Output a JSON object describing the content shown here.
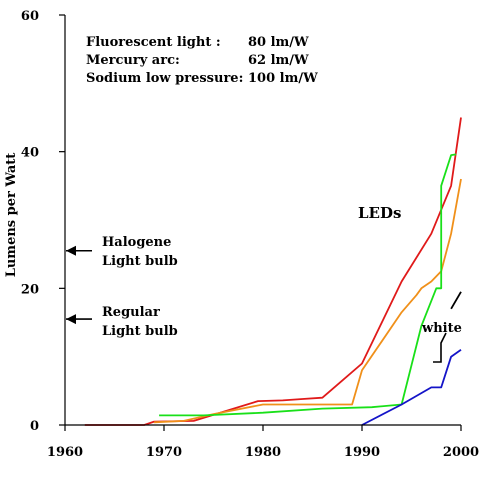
{
  "chart_data": {
    "type": "line",
    "title": "",
    "xlabel": "",
    "ylabel": "Lumens per Watt",
    "xlim": [
      1960,
      2000
    ],
    "ylim": [
      0,
      60
    ],
    "xticks": [
      1960,
      1970,
      1980,
      1990,
      2000
    ],
    "yticks": [
      0,
      20,
      40,
      60
    ],
    "grid": false,
    "colors": {
      "red": "#e01a1a",
      "orange": "#f0901a",
      "green": "#19e019",
      "blue": "#1414c8",
      "black": "#000000"
    },
    "series": [
      {
        "color": "red",
        "points": [
          [
            1962,
            0
          ],
          [
            1968,
            0
          ],
          [
            1969,
            0.5
          ],
          [
            1973,
            0.6
          ],
          [
            1979.5,
            3.5
          ],
          [
            1982,
            3.6
          ],
          [
            1984,
            3.8
          ],
          [
            1986,
            4
          ],
          [
            1990,
            9
          ],
          [
            1994,
            21
          ],
          [
            1997,
            28
          ],
          [
            1999,
            35
          ],
          [
            2000,
            45
          ]
        ]
      },
      {
        "color": "orange",
        "points": [
          [
            1969,
            0.4
          ],
          [
            1972,
            0.6
          ],
          [
            1975,
            1.6
          ],
          [
            1980,
            3.0
          ],
          [
            1989,
            3.0
          ],
          [
            1990,
            8
          ],
          [
            1994,
            16.5
          ],
          [
            1995.5,
            19
          ],
          [
            1996,
            20
          ],
          [
            1997,
            21
          ],
          [
            1998,
            22.5
          ],
          [
            1999,
            28
          ],
          [
            2000,
            36
          ]
        ]
      },
      {
        "color": "green",
        "points": [
          [
            1969.5,
            1.4
          ],
          [
            1974,
            1.4
          ],
          [
            1980,
            1.8
          ],
          [
            1986,
            2.4
          ],
          [
            1991,
            2.6
          ],
          [
            1994,
            3
          ],
          [
            1996,
            14.5
          ],
          [
            1997.5,
            20
          ],
          [
            1998,
            20
          ],
          [
            1998,
            35
          ],
          [
            1999,
            39.5
          ],
          [
            1999.5,
            39.6
          ]
        ]
      },
      {
        "color": "blue",
        "points": [
          [
            1990,
            0
          ],
          [
            1994,
            3
          ],
          [
            1997,
            5.5
          ],
          [
            1998,
            5.5
          ],
          [
            1999,
            10
          ],
          [
            2000,
            11
          ]
        ]
      },
      {
        "color": "black",
        "points": [
          [
            1999,
            17
          ],
          [
            2000,
            19.5
          ]
        ]
      }
    ],
    "info_box": [
      {
        "label": "Fluorescent light :",
        "value": "80 lm/W"
      },
      {
        "label": "Mercury arc:",
        "value": "62 lm/W"
      },
      {
        "label": "Sodium low pressure:",
        "value": "100 lm/W"
      }
    ],
    "annotations": {
      "leds": "LEDs",
      "white": "white",
      "halogen_line1": "Halogene",
      "halogen_line2": "Light bulb",
      "halogen_value": 25.5,
      "regular_line1": "Regular",
      "regular_line2": "Light bulb",
      "regular_value": 15.5
    }
  }
}
